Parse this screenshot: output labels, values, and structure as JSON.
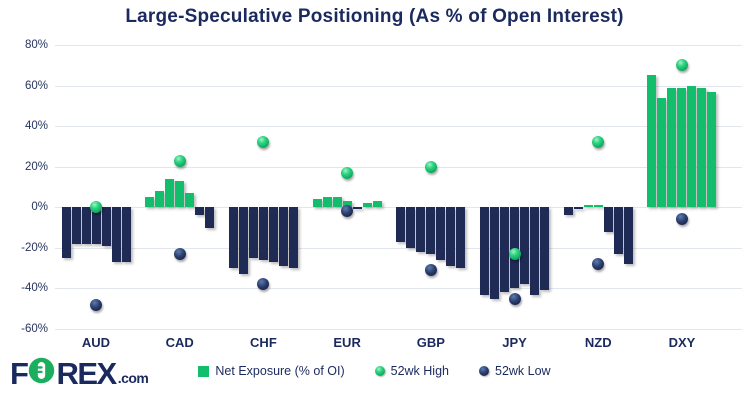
{
  "title": "Large-Speculative Positioning (As % of Open Interest)",
  "logo": {
    "part1": "F",
    "part2": "REX",
    "suffix": ".com",
    "o_icon": "green-circle-plug-icon",
    "green": "#1bae5f",
    "navy": "#1b2a5e"
  },
  "legend": [
    {
      "marker": "square",
      "label": "Net Exposure (% of OI)"
    },
    {
      "marker": "sphere-green",
      "label": "52wk High"
    },
    {
      "marker": "sphere-navy",
      "label": "52wk Low"
    }
  ],
  "colors": {
    "bar_positive": "#12bd6b",
    "bar_negative": "#1f2a55",
    "title_navy": "#1b2a5e",
    "gridline": "#e2e7ee",
    "high_dot": "#12bd6b",
    "low_dot": "#1f2a55"
  },
  "chart_data": {
    "type": "bar",
    "title": "Large-Speculative Positioning (As % of Open Interest)",
    "categories": [
      "AUD",
      "CAD",
      "CHF",
      "EUR",
      "GBP",
      "JPY",
      "NZD",
      "DXY"
    ],
    "bars_per_category": 7,
    "ylim": [
      -60,
      80
    ],
    "grid": true,
    "legend_position": "bottom",
    "y_ticks": [
      {
        "label": "80%",
        "value": 80
      },
      {
        "label": "60%",
        "value": 60
      },
      {
        "label": "40%",
        "value": 40
      },
      {
        "label": "20%",
        "value": 20
      },
      {
        "label": "0%",
        "value": 0
      },
      {
        "label": "-20%",
        "value": -20
      },
      {
        "label": "-40%",
        "value": -40
      },
      {
        "label": "-60%",
        "value": -60
      }
    ],
    "series": [
      {
        "name": "Net Exposure (% of OI)",
        "type": "bar",
        "values_by_category": [
          [
            -25,
            -18,
            -18,
            -18,
            -19,
            -27,
            -27
          ],
          [
            5,
            8,
            14,
            13,
            7,
            -4,
            -10
          ],
          [
            -30,
            -33,
            -25,
            -26,
            -27,
            -29,
            -30
          ],
          [
            4,
            5,
            5,
            3,
            -1,
            2,
            3
          ],
          [
            -17,
            -20,
            -22,
            -23,
            -26,
            -29,
            -30
          ],
          [
            -43,
            -45,
            -42,
            -40,
            -38,
            -43,
            -41
          ],
          [
            -4,
            -1,
            1,
            1,
            -12,
            -23,
            -28
          ],
          [
            65,
            54,
            59,
            59,
            60,
            59,
            57
          ]
        ]
      },
      {
        "name": "52wk High",
        "type": "point",
        "values": [
          0,
          23,
          32,
          17,
          20,
          -23,
          32,
          70
        ]
      },
      {
        "name": "52wk Low",
        "type": "point",
        "values": [
          -48,
          -23,
          -38,
          -2,
          -31,
          -45,
          -28,
          -6
        ]
      }
    ]
  }
}
